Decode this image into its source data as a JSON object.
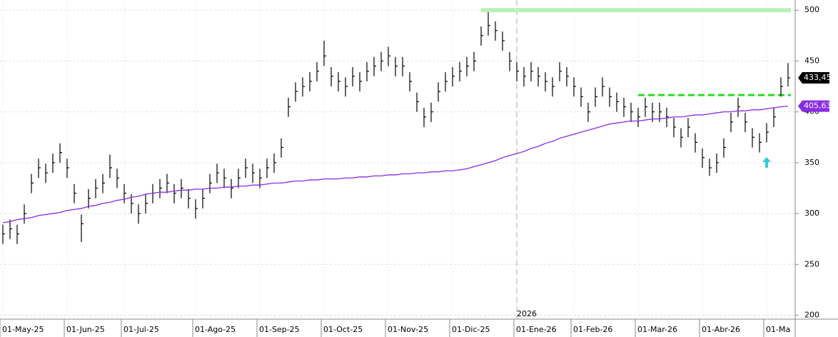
{
  "chart_data": {
    "type": "ohlc",
    "categories": [
      "01-May-25",
      null,
      null,
      null,
      null,
      null,
      null,
      null,
      null,
      "01-Jun-25",
      null,
      null,
      null,
      null,
      null,
      null,
      null,
      "01-Jul-25",
      null,
      null,
      null,
      null,
      null,
      null,
      null,
      null,
      null,
      "01-Ago-25",
      null,
      null,
      null,
      null,
      null,
      null,
      null,
      null,
      "01-Sep-25",
      null,
      null,
      null,
      null,
      null,
      null,
      null,
      null,
      "01-Oct-25",
      null,
      null,
      null,
      null,
      null,
      null,
      null,
      null,
      "01-Nov-25",
      null,
      null,
      null,
      null,
      null,
      null,
      null,
      null,
      "01-Dic-25",
      null,
      null,
      null,
      null,
      null,
      null,
      null,
      null,
      "01-Ene-26",
      null,
      null,
      null,
      null,
      null,
      null,
      null,
      "01-Feb-26",
      null,
      null,
      null,
      null,
      null,
      null,
      null,
      null,
      "01-Mar-26",
      null,
      null,
      null,
      null,
      null,
      null,
      null,
      null,
      "01-Abr-26",
      null,
      null,
      null,
      null,
      null,
      null,
      null,
      null,
      "01-Ma",
      null,
      null,
      null
    ],
    "bars": {
      "color": "#000000",
      "high": [
        289,
        294,
        289,
        309,
        339,
        354,
        349,
        359,
        369,
        354,
        329,
        299,
        324,
        334,
        339,
        358,
        344,
        329,
        319,
        309,
        319,
        329,
        334,
        339,
        329,
        334,
        324,
        314,
        324,
        339,
        349,
        344,
        334,
        344,
        354,
        349,
        344,
        354,
        359,
        374,
        414,
        429,
        434,
        439,
        449,
        470,
        444,
        439,
        434,
        444,
        439,
        449,
        454,
        459,
        464,
        454,
        454,
        439,
        419,
        404,
        409,
        429,
        439,
        444,
        449,
        454,
        459,
        484,
        498,
        489,
        479,
        459,
        449,
        444,
        449,
        444,
        439,
        434,
        449,
        444,
        434,
        424,
        409,
        424,
        434,
        424,
        419,
        414,
        409,
        404,
        414,
        409,
        409,
        404,
        394,
        384,
        394,
        379,
        364,
        354,
        359,
        374,
        399,
        414,
        399,
        384,
        379,
        389,
        404,
        434,
        448
      ],
      "low": [
        270,
        275,
        270,
        290,
        320,
        335,
        330,
        340,
        350,
        335,
        310,
        272,
        305,
        315,
        320,
        335,
        325,
        310,
        300,
        290,
        300,
        310,
        315,
        320,
        310,
        315,
        305,
        295,
        305,
        320,
        330,
        325,
        315,
        325,
        335,
        330,
        325,
        335,
        340,
        355,
        395,
        410,
        415,
        420,
        430,
        445,
        425,
        420,
        415,
        425,
        420,
        430,
        435,
        440,
        445,
        435,
        435,
        420,
        400,
        385,
        390,
        410,
        420,
        425,
        430,
        435,
        440,
        465,
        475,
        470,
        460,
        440,
        430,
        425,
        430,
        425,
        420,
        415,
        430,
        425,
        415,
        405,
        390,
        405,
        415,
        405,
        400,
        395,
        390,
        385,
        395,
        390,
        390,
        385,
        375,
        365,
        375,
        360,
        345,
        337,
        340,
        355,
        380,
        395,
        380,
        365,
        360,
        370,
        385,
        415,
        425
      ],
      "close": [
        280,
        285,
        280,
        300,
        330,
        345,
        340,
        350,
        360,
        345,
        320,
        290,
        315,
        325,
        330,
        345,
        335,
        320,
        310,
        300,
        310,
        320,
        325,
        330,
        320,
        325,
        315,
        305,
        315,
        330,
        340,
        335,
        325,
        335,
        345,
        340,
        335,
        345,
        350,
        365,
        405,
        420,
        425,
        430,
        440,
        455,
        435,
        430,
        425,
        435,
        430,
        440,
        445,
        450,
        455,
        445,
        445,
        430,
        410,
        395,
        400,
        420,
        430,
        435,
        440,
        445,
        450,
        475,
        485,
        480,
        470,
        450,
        440,
        435,
        440,
        435,
        430,
        425,
        440,
        435,
        425,
        415,
        400,
        415,
        425,
        415,
        410,
        405,
        400,
        395,
        405,
        400,
        400,
        395,
        385,
        375,
        385,
        370,
        355,
        345,
        350,
        365,
        390,
        405,
        390,
        375,
        370,
        380,
        395,
        425,
        433.45
      ]
    },
    "moving_average": {
      "color": "#8a2be2",
      "values": [
        291,
        292,
        294,
        295,
        296,
        298,
        299,
        300,
        301,
        303,
        304,
        305,
        307,
        308,
        310,
        311,
        313,
        314,
        316,
        317,
        319,
        320,
        321,
        321,
        322,
        323,
        323,
        324,
        324,
        325,
        325,
        326,
        326,
        327,
        327,
        328,
        328,
        329,
        330,
        330,
        331,
        332,
        332,
        333,
        333,
        334,
        334,
        334,
        335,
        335,
        336,
        336,
        337,
        337,
        338,
        338,
        339,
        339,
        340,
        340,
        341,
        341,
        342,
        342,
        343,
        344,
        346,
        348,
        350,
        352,
        355,
        357,
        359,
        361,
        364,
        366,
        369,
        371,
        374,
        376,
        378,
        380,
        382,
        384,
        386,
        388,
        389,
        390,
        391,
        391,
        392,
        393,
        393,
        394,
        395,
        395,
        396,
        397,
        397,
        398,
        399,
        400,
        400,
        401,
        401,
        402,
        402,
        403,
        404,
        405,
        405.63
      ]
    },
    "price_tags": [
      {
        "value": 433.45,
        "label": "433,45",
        "color": "#000000"
      },
      {
        "value": 405.63,
        "label": "405,63",
        "color": "#8a2be2"
      }
    ],
    "levels": [
      {
        "value": 500,
        "from": "01-Dic-25",
        "color": "#b8f0b8",
        "style": "solid"
      },
      {
        "value": 416.5,
        "from": "01-Mar-26",
        "color": "#22dd22",
        "style": "dashed"
      }
    ],
    "arrows": [
      {
        "category": "01-Ma",
        "value": 350,
        "color": "#33cccc"
      }
    ],
    "year_divider": {
      "category": "01-Ene-26",
      "label": "2026"
    },
    "ylim": [
      187,
      510
    ],
    "yticks": [
      200,
      250,
      300,
      350,
      400,
      450,
      500
    ],
    "grid": true
  }
}
